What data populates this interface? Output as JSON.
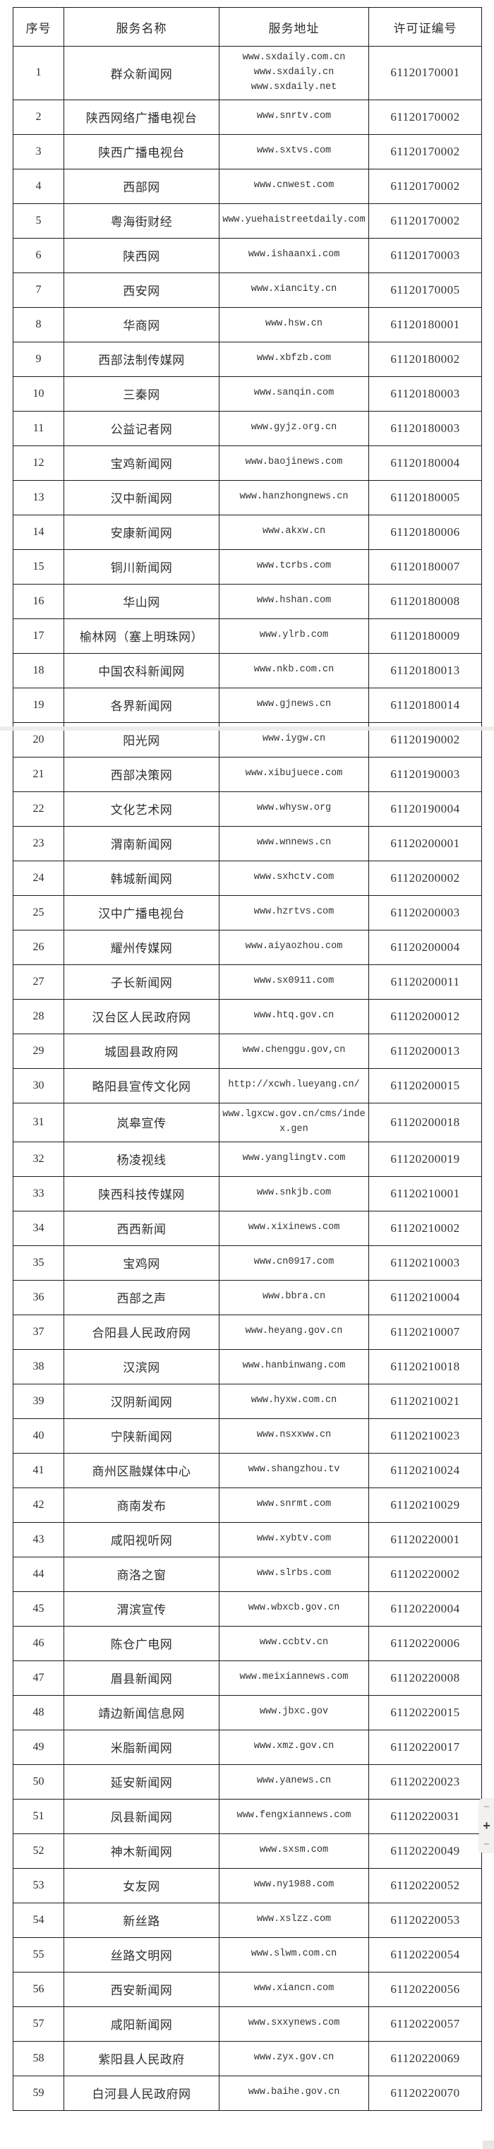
{
  "table": {
    "columns": [
      {
        "key": "no",
        "label": "序号"
      },
      {
        "key": "name",
        "label": "服务名称"
      },
      {
        "key": "address",
        "label": "服务地址"
      },
      {
        "key": "license",
        "label": "许可证编号"
      }
    ],
    "rows": [
      {
        "no": "1",
        "name": "群众新闻网",
        "address": [
          "www.sxdaily.com.cn",
          "www.sxdaily.cn",
          "www.sxdaily.net"
        ],
        "license": "61120170001"
      },
      {
        "no": "2",
        "name": "陕西网络广播电视台",
        "address": [
          "www.snrtv.com"
        ],
        "license": "61120170002"
      },
      {
        "no": "3",
        "name": "陕西广播电视台",
        "address": [
          "www.sxtvs.com"
        ],
        "license": "61120170002"
      },
      {
        "no": "4",
        "name": "西部网",
        "address": [
          "www.cnwest.com"
        ],
        "license": "61120170002"
      },
      {
        "no": "5",
        "name": "粤海街财经",
        "address": [
          "www.yuehaistreetdaily.com"
        ],
        "license": "61120170002"
      },
      {
        "no": "6",
        "name": "陕西网",
        "address": [
          "www.ishaanxi.com"
        ],
        "license": "61120170003"
      },
      {
        "no": "7",
        "name": "西安网",
        "address": [
          "www.xiancity.cn"
        ],
        "license": "61120170005"
      },
      {
        "no": "8",
        "name": "华商网",
        "address": [
          "www.hsw.cn"
        ],
        "license": "61120180001"
      },
      {
        "no": "9",
        "name": "西部法制传媒网",
        "address": [
          "www.xbfzb.com"
        ],
        "license": "61120180002"
      },
      {
        "no": "10",
        "name": "三秦网",
        "address": [
          "www.sanqin.com"
        ],
        "license": "61120180003"
      },
      {
        "no": "11",
        "name": "公益记者网",
        "address": [
          "www.gyjz.org.cn"
        ],
        "license": "61120180003"
      },
      {
        "no": "12",
        "name": "宝鸡新闻网",
        "address": [
          "www.baojinews.com"
        ],
        "license": "61120180004"
      },
      {
        "no": "13",
        "name": "汉中新闻网",
        "address": [
          "www.hanzhongnews.cn"
        ],
        "license": "61120180005"
      },
      {
        "no": "14",
        "name": "安康新闻网",
        "address": [
          "www.akxw.cn"
        ],
        "license": "61120180006"
      },
      {
        "no": "15",
        "name": "铜川新闻网",
        "address": [
          "www.tcrbs.com"
        ],
        "license": "61120180007"
      },
      {
        "no": "16",
        "name": "华山网",
        "address": [
          "www.hshan.com"
        ],
        "license": "61120180008"
      },
      {
        "no": "17",
        "name": "榆林网（塞上明珠网）",
        "address": [
          "www.ylrb.com"
        ],
        "license": "61120180009"
      },
      {
        "no": "18",
        "name": "中国农科新闻网",
        "address": [
          "www.nkb.com.cn"
        ],
        "license": "61120180013"
      },
      {
        "no": "19",
        "name": "各界新闻网",
        "address": [
          "www.gjnews.cn"
        ],
        "license": "61120180014"
      },
      {
        "no": "20",
        "name": "阳光网",
        "address": [
          "www.iygw.cn"
        ],
        "license": "61120190002",
        "page_break": true
      },
      {
        "no": "21",
        "name": "西部决策网",
        "address": [
          "www.xibujuece.com"
        ],
        "license": "61120190003"
      },
      {
        "no": "22",
        "name": "文化艺术网",
        "address": [
          "www.whysw.org"
        ],
        "license": "61120190004"
      },
      {
        "no": "23",
        "name": "渭南新闻网",
        "address": [
          "www.wnnews.cn"
        ],
        "license": "61120200001"
      },
      {
        "no": "24",
        "name": "韩城新闻网",
        "address": [
          "www.sxhctv.com"
        ],
        "license": "61120200002"
      },
      {
        "no": "25",
        "name": "汉中广播电视台",
        "address": [
          "www.hzrtvs.com"
        ],
        "license": "61120200003"
      },
      {
        "no": "26",
        "name": "耀州传媒网",
        "address": [
          "www.aiyaozhou.com"
        ],
        "license": "61120200004"
      },
      {
        "no": "27",
        "name": "子长新闻网",
        "address": [
          "www.sx0911.com"
        ],
        "license": "61120200011"
      },
      {
        "no": "28",
        "name": "汉台区人民政府网",
        "address": [
          "www.htq.gov.cn"
        ],
        "license": "61120200012"
      },
      {
        "no": "29",
        "name": "城固县政府网",
        "address": [
          "www.chenggu.gov,cn"
        ],
        "license": "61120200013"
      },
      {
        "no": "30",
        "name": "略阳县宣传文化网",
        "address": [
          "http://xcwh.lueyang.cn/"
        ],
        "license": "61120200015"
      },
      {
        "no": "31",
        "name": "岚皋宣传",
        "address": [
          "www.lgxcw.gov.cn/cms/index.gen"
        ],
        "license": "61120200018"
      },
      {
        "no": "32",
        "name": "杨凌视线",
        "address": [
          "www.yanglingtv.com"
        ],
        "license": "61120200019"
      },
      {
        "no": "33",
        "name": "陕西科技传媒网",
        "address": [
          "www.snkjb.com"
        ],
        "license": "61120210001"
      },
      {
        "no": "34",
        "name": "西西新闻",
        "address": [
          "www.xixinews.com"
        ],
        "license": "61120210002"
      },
      {
        "no": "35",
        "name": "宝鸡网",
        "address": [
          "www.cn0917.com"
        ],
        "license": "61120210003"
      },
      {
        "no": "36",
        "name": "西部之声",
        "address": [
          "www.bbra.cn"
        ],
        "license": "61120210004"
      },
      {
        "no": "37",
        "name": "合阳县人民政府网",
        "address": [
          "www.heyang.gov.cn"
        ],
        "license": "61120210007"
      },
      {
        "no": "38",
        "name": "汉滨网",
        "address": [
          "www.hanbinwang.com"
        ],
        "license": "61120210018"
      },
      {
        "no": "39",
        "name": "汉阴新闻网",
        "address": [
          "www.hyxw.com.cn"
        ],
        "license": "61120210021"
      },
      {
        "no": "40",
        "name": "宁陕新闻网",
        "address": [
          "www.nsxxww.cn"
        ],
        "license": "61120210023"
      },
      {
        "no": "41",
        "name": "商州区融媒体中心",
        "address": [
          "www.shangzhou.tv"
        ],
        "license": "61120210024"
      },
      {
        "no": "42",
        "name": "商南发布",
        "address": [
          "www.snrmt.com"
        ],
        "license": "61120210029"
      },
      {
        "no": "43",
        "name": "咸阳视听网",
        "address": [
          "www.xybtv.com"
        ],
        "license": "61120220001"
      },
      {
        "no": "44",
        "name": "商洛之窗",
        "address": [
          "www.slrbs.com"
        ],
        "license": "61120220002"
      },
      {
        "no": "45",
        "name": "渭滨宣传",
        "address": [
          "www.wbxcb.gov.cn"
        ],
        "license": "61120220004"
      },
      {
        "no": "46",
        "name": "陈仓广电网",
        "address": [
          "www.ccbtv.cn"
        ],
        "license": "61120220006"
      },
      {
        "no": "47",
        "name": "眉县新闻网",
        "address": [
          "www.meixiannews.com"
        ],
        "license": "61120220008"
      },
      {
        "no": "48",
        "name": "靖边新闻信息网",
        "address": [
          "www.jbxc.gov"
        ],
        "license": "61120220015"
      },
      {
        "no": "49",
        "name": "米脂新闻网",
        "address": [
          "www.xmz.gov.cn"
        ],
        "license": "61120220017"
      },
      {
        "no": "50",
        "name": "延安新闻网",
        "address": [
          "www.yanews.cn"
        ],
        "license": "61120220023"
      },
      {
        "no": "51",
        "name": "凤县新闻网",
        "address": [
          "www.fengxiannews.com"
        ],
        "license": "61120220031"
      },
      {
        "no": "52",
        "name": "神木新闻网",
        "address": [
          "www.sxsm.com"
        ],
        "license": "61120220049"
      },
      {
        "no": "53",
        "name": "女友网",
        "address": [
          "www.ny1988.com"
        ],
        "license": "61120220052"
      },
      {
        "no": "54",
        "name": "新丝路",
        "address": [
          "www.xslzz.com"
        ],
        "license": "61120220053"
      },
      {
        "no": "55",
        "name": "丝路文明网",
        "address": [
          "www.slwm.com.cn"
        ],
        "license": "61120220054"
      },
      {
        "no": "56",
        "name": "西安新闻网",
        "address": [
          "www.xiancn.com"
        ],
        "license": "61120220056"
      },
      {
        "no": "57",
        "name": "咸阳新闻网",
        "address": [
          "www.sxxynews.com"
        ],
        "license": "61120220057"
      },
      {
        "no": "58",
        "name": "紫阳县人民政府",
        "address": [
          "www.zyx.gov.cn"
        ],
        "license": "61120220069"
      },
      {
        "no": "59",
        "name": "白河县人民政府网",
        "address": [
          "www.baihe.gov.cn"
        ],
        "license": "61120220070"
      }
    ]
  },
  "side_control": {
    "minus_top_label": "−",
    "plus_label": "+",
    "minus_bottom_label": "−"
  },
  "colors": {
    "border": "#1b1b1b",
    "text": "#2e2e2e",
    "seam": "#eceae7",
    "control_bg": "#f2f1f0"
  }
}
